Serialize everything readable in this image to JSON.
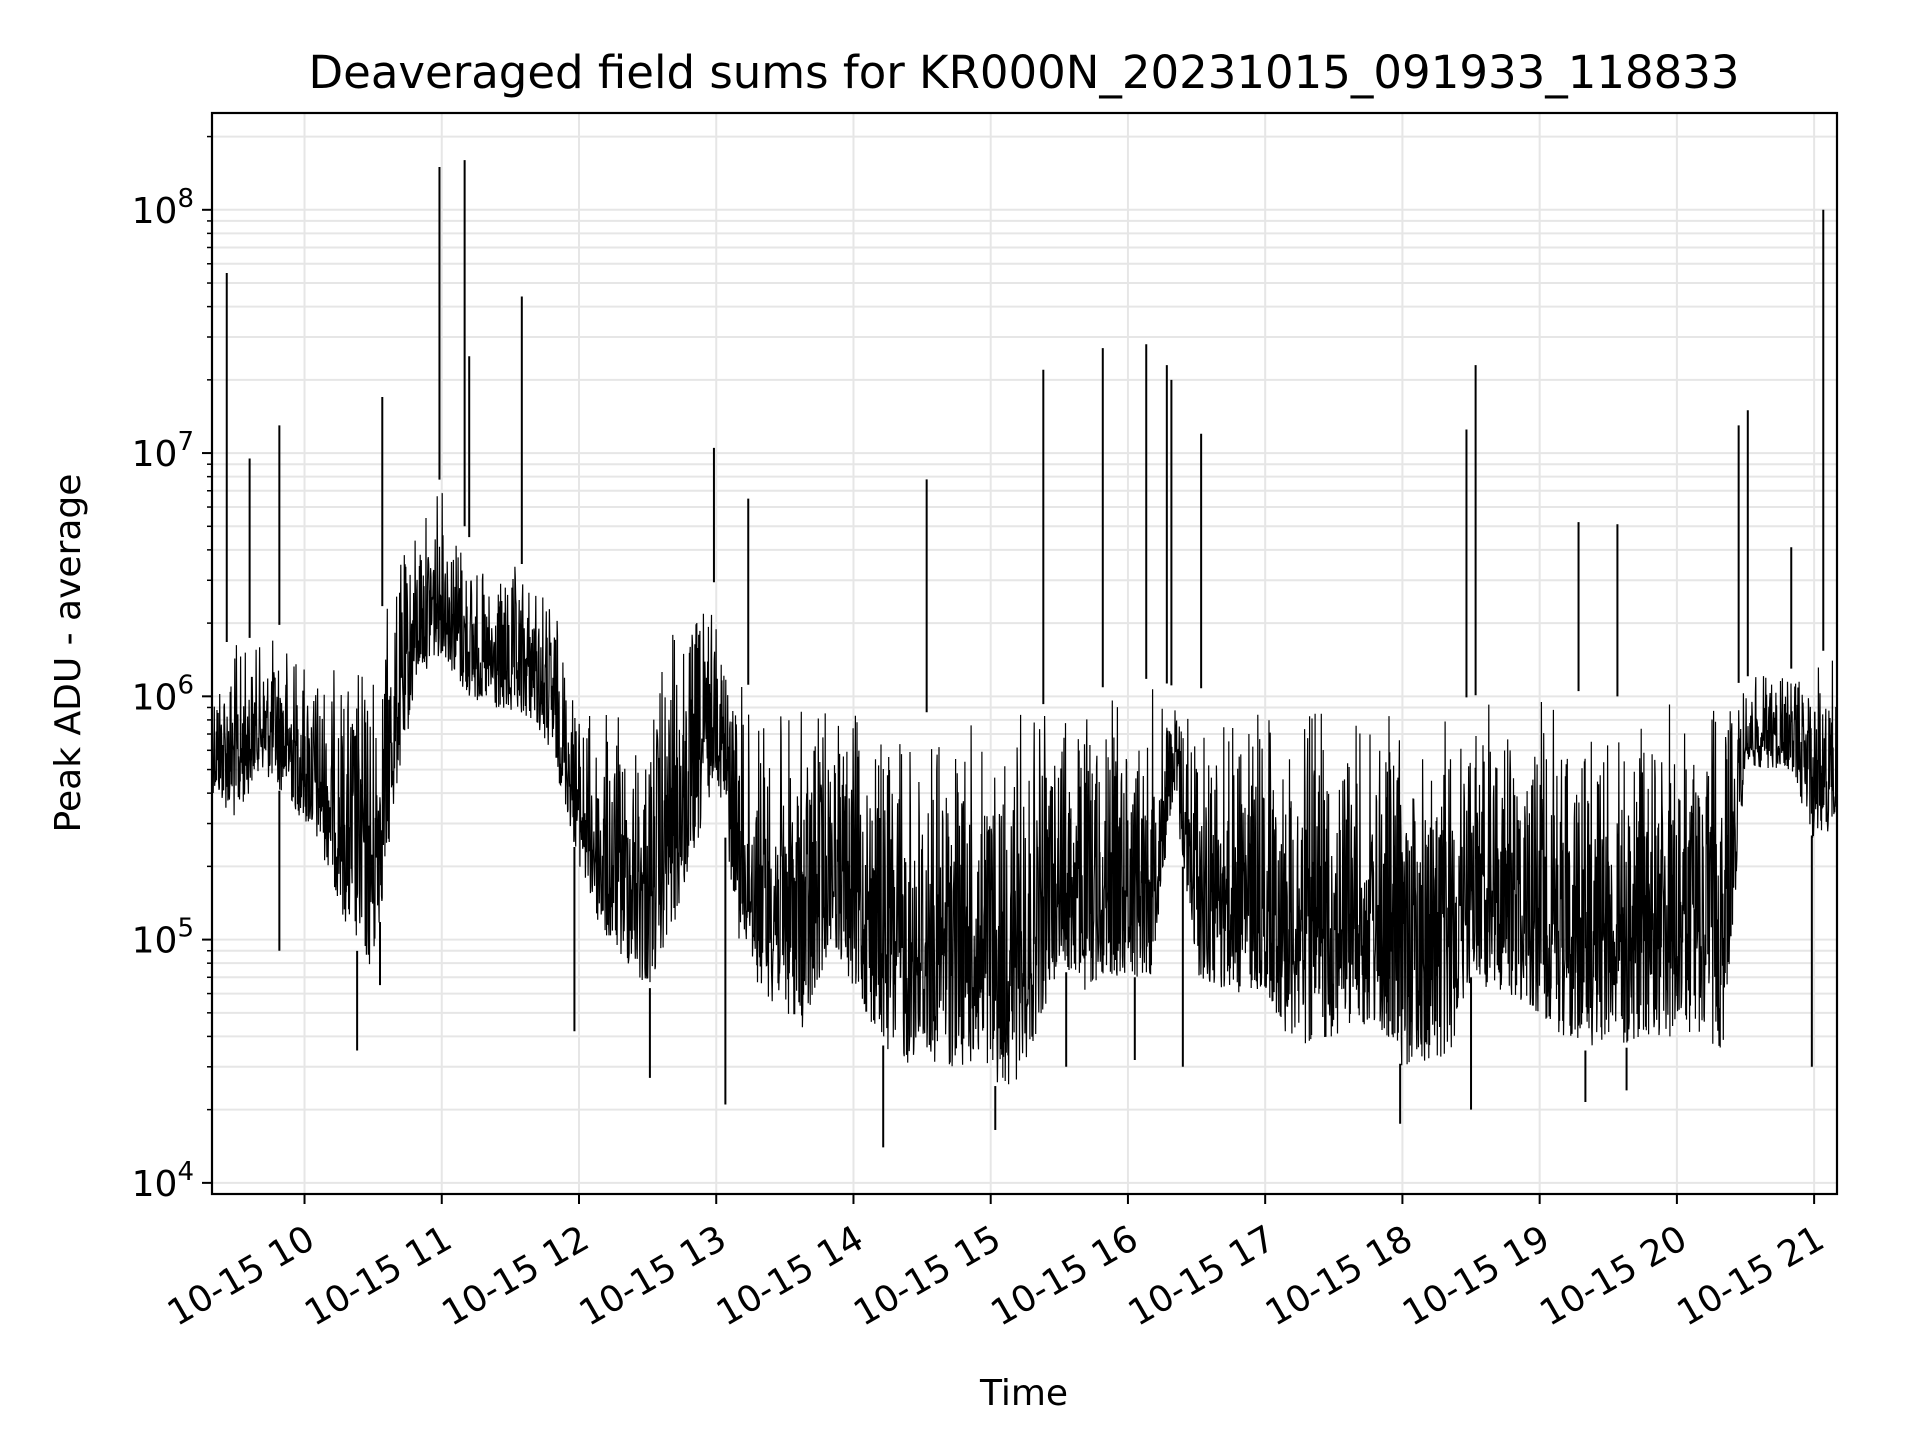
{
  "chart_data": {
    "type": "line",
    "title": "Deaveraged field sums for KR000N_20231015_091933_118833",
    "xlabel": "Time",
    "ylabel": "Peak ADU - average",
    "y_scale": "log",
    "ylim": [
      9000,
      250000000
    ],
    "xlim": [
      "2023-10-15 09:19:33",
      "2023-10-15 21:10:00"
    ],
    "grid": true,
    "line_color": "#000000",
    "grid_color": "#e6e6e6",
    "x_ticks": [
      {
        "value": "2023-10-15 10:00",
        "label": "10-15 10"
      },
      {
        "value": "2023-10-15 11:00",
        "label": "10-15 11"
      },
      {
        "value": "2023-10-15 12:00",
        "label": "10-15 12"
      },
      {
        "value": "2023-10-15 13:00",
        "label": "10-15 13"
      },
      {
        "value": "2023-10-15 14:00",
        "label": "10-15 14"
      },
      {
        "value": "2023-10-15 15:00",
        "label": "10-15 15"
      },
      {
        "value": "2023-10-15 16:00",
        "label": "10-15 16"
      },
      {
        "value": "2023-10-15 17:00",
        "label": "10-15 17"
      },
      {
        "value": "2023-10-15 18:00",
        "label": "10-15 18"
      },
      {
        "value": "2023-10-15 19:00",
        "label": "10-15 19"
      },
      {
        "value": "2023-10-15 20:00",
        "label": "10-15 20"
      },
      {
        "value": "2023-10-15 21:00",
        "label": "10-15 21"
      }
    ],
    "y_ticks": [
      {
        "value": 10000,
        "base": "10",
        "exp": "4"
      },
      {
        "value": 100000,
        "base": "10",
        "exp": "5"
      },
      {
        "value": 1000000,
        "base": "10",
        "exp": "6"
      },
      {
        "value": 10000000,
        "base": "10",
        "exp": "7"
      },
      {
        "value": 100000000,
        "base": "10",
        "exp": "8"
      }
    ],
    "series": [
      {
        "envelope": {
          "x": [
            "2023-10-15 09:20",
            "2023-10-15 09:30",
            "2023-10-15 09:40",
            "2023-10-15 09:50",
            "2023-10-15 10:00",
            "2023-10-15 10:10",
            "2023-10-15 10:20",
            "2023-10-15 10:30",
            "2023-10-15 10:40",
            "2023-10-15 10:50",
            "2023-10-15 11:00",
            "2023-10-15 11:10",
            "2023-10-15 11:20",
            "2023-10-15 11:30",
            "2023-10-15 11:40",
            "2023-10-15 11:50",
            "2023-10-15 12:00",
            "2023-10-15 12:10",
            "2023-10-15 12:20",
            "2023-10-15 12:30",
            "2023-10-15 12:40",
            "2023-10-15 12:50",
            "2023-10-15 13:00",
            "2023-10-15 13:10",
            "2023-10-15 13:20",
            "2023-10-15 13:30",
            "2023-10-15 13:40",
            "2023-10-15 13:50",
            "2023-10-15 14:00",
            "2023-10-15 14:10",
            "2023-10-15 14:20",
            "2023-10-15 14:30",
            "2023-10-15 14:40",
            "2023-10-15 14:50",
            "2023-10-15 15:00",
            "2023-10-15 15:10",
            "2023-10-15 15:20",
            "2023-10-15 15:30",
            "2023-10-15 15:40",
            "2023-10-15 15:50",
            "2023-10-15 16:00",
            "2023-10-15 16:10",
            "2023-10-15 16:20",
            "2023-10-15 16:30",
            "2023-10-15 16:40",
            "2023-10-15 16:50",
            "2023-10-15 17:00",
            "2023-10-15 17:10",
            "2023-10-15 17:20",
            "2023-10-15 17:30",
            "2023-10-15 17:40",
            "2023-10-15 17:50",
            "2023-10-15 18:00",
            "2023-10-15 18:10",
            "2023-10-15 18:20",
            "2023-10-15 18:30",
            "2023-10-15 18:40",
            "2023-10-15 18:50",
            "2023-10-15 19:00",
            "2023-10-15 19:10",
            "2023-10-15 19:20",
            "2023-10-15 19:30",
            "2023-10-15 19:40",
            "2023-10-15 19:50",
            "2023-10-15 20:00",
            "2023-10-15 20:10",
            "2023-10-15 20:20",
            "2023-10-15 20:30",
            "2023-10-15 20:40",
            "2023-10-15 20:50",
            "2023-10-15 21:00",
            "2023-10-15 21:10"
          ],
          "high": [
            1500000,
            1800000,
            1700000,
            2000000,
            1600000,
            1400000,
            1500000,
            1800000,
            3500000,
            6000000,
            8000000,
            5000000,
            3000000,
            3500000,
            3500000,
            2500000,
            1000000,
            900000,
            900000,
            1000000,
            2000000,
            2500000,
            3000000,
            1200000,
            1000000,
            950000,
            1000000,
            1100000,
            900000,
            900000,
            850000,
            850000,
            900000,
            850000,
            800000,
            850000,
            900000,
            1000000,
            1000000,
            1100000,
            1100000,
            1200000,
            1100000,
            1100000,
            1000000,
            1000000,
            950000,
            1000000,
            1000000,
            950000,
            1000000,
            900000,
            950000,
            950000,
            950000,
            1000000,
            1050000,
            1000000,
            1050000,
            1050000,
            1050000,
            1000000,
            1000000,
            1000000,
            1000000,
            1000000,
            1000000,
            1200000,
            1300000,
            1300000,
            1500000,
            1600000
          ],
          "low": [
            400000,
            300000,
            500000,
            400000,
            300000,
            200000,
            100000,
            70000,
            400000,
            1200000,
            1500000,
            1000000,
            900000,
            800000,
            800000,
            500000,
            200000,
            100000,
            80000,
            60000,
            100000,
            200000,
            500000,
            100000,
            60000,
            50000,
            40000,
            100000,
            60000,
            40000,
            30000,
            30000,
            30000,
            30000,
            25000,
            25000,
            40000,
            80000,
            60000,
            70000,
            70000,
            70000,
            400000,
            70000,
            60000,
            60000,
            60000,
            40000,
            35000,
            40000,
            45000,
            40000,
            30000,
            30000,
            30000,
            70000,
            60000,
            55000,
            50000,
            40000,
            35000,
            40000,
            35000,
            40000,
            35000,
            40000,
            35000,
            500000,
            500000,
            500000,
            250000,
            300000
          ]
        },
        "spikes": [
          {
            "x": "2023-10-15 09:26",
            "y": 55000000
          },
          {
            "x": "2023-10-15 09:36",
            "y": 9500000
          },
          {
            "x": "2023-10-15 09:49",
            "y": 13000000
          },
          {
            "x": "2023-10-15 10:34",
            "y": 17000000
          },
          {
            "x": "2023-10-15 10:59",
            "y": 150000000
          },
          {
            "x": "2023-10-15 11:10",
            "y": 160000000
          },
          {
            "x": "2023-10-15 11:12",
            "y": 25000000
          },
          {
            "x": "2023-10-15 11:35",
            "y": 44000000
          },
          {
            "x": "2023-10-15 12:59",
            "y": 10500000
          },
          {
            "x": "2023-10-15 13:14",
            "y": 6500000
          },
          {
            "x": "2023-10-15 14:32",
            "y": 7800000
          },
          {
            "x": "2023-10-15 15:23",
            "y": 22000000
          },
          {
            "x": "2023-10-15 15:49",
            "y": 27000000
          },
          {
            "x": "2023-10-15 16:08",
            "y": 28000000
          },
          {
            "x": "2023-10-15 16:17",
            "y": 23000000
          },
          {
            "x": "2023-10-15 16:19",
            "y": 20000000
          },
          {
            "x": "2023-10-15 16:32",
            "y": 12000000
          },
          {
            "x": "2023-10-15 18:28",
            "y": 12500000
          },
          {
            "x": "2023-10-15 18:32",
            "y": 23000000
          },
          {
            "x": "2023-10-15 19:17",
            "y": 5200000
          },
          {
            "x": "2023-10-15 19:34",
            "y": 5100000
          },
          {
            "x": "2023-10-15 20:27",
            "y": 13000000
          },
          {
            "x": "2023-10-15 20:31",
            "y": 15000000
          },
          {
            "x": "2023-10-15 20:50",
            "y": 4100000
          },
          {
            "x": "2023-10-15 21:04",
            "y": 100000000
          }
        ],
        "dips": [
          {
            "x": "2023-10-15 09:49",
            "y": 90000
          },
          {
            "x": "2023-10-15 10:23",
            "y": 35000
          },
          {
            "x": "2023-10-15 10:33",
            "y": 65000
          },
          {
            "x": "2023-10-15 11:58",
            "y": 42000
          },
          {
            "x": "2023-10-15 12:31",
            "y": 27000
          },
          {
            "x": "2023-10-15 13:04",
            "y": 21000
          },
          {
            "x": "2023-10-15 14:13",
            "y": 14000
          },
          {
            "x": "2023-10-15 15:02",
            "y": 16500
          },
          {
            "x": "2023-10-15 15:33",
            "y": 30000
          },
          {
            "x": "2023-10-15 16:03",
            "y": 32000
          },
          {
            "x": "2023-10-15 16:24",
            "y": 30000
          },
          {
            "x": "2023-10-15 17:59",
            "y": 17500
          },
          {
            "x": "2023-10-15 18:30",
            "y": 20000
          },
          {
            "x": "2023-10-15 19:20",
            "y": 21500
          },
          {
            "x": "2023-10-15 19:38",
            "y": 24000
          },
          {
            "x": "2023-10-15 20:59",
            "y": 30000
          }
        ]
      }
    ]
  }
}
